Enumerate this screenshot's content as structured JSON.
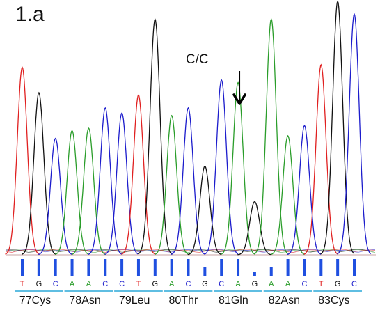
{
  "panel_label": "1.a",
  "annotation": {
    "text": "C/C",
    "target_base_index": 13
  },
  "colors": {
    "A": "#2a9d2a",
    "C": "#1c1ccc",
    "G": "#111111",
    "T": "#e02020",
    "bar": "#1f4fe0",
    "underline": "#2aa8d8"
  },
  "chart_data": {
    "type": "line",
    "title": "",
    "xlabel": "",
    "ylabel": "",
    "ylim": [
      0,
      100
    ],
    "grid": false,
    "legend": "none",
    "bases": [
      "T",
      "G",
      "C",
      "A",
      "A",
      "C",
      "C",
      "T",
      "G",
      "A",
      "C",
      "G",
      "C",
      "A",
      "G",
      "A",
      "A",
      "C",
      "T",
      "G",
      "C"
    ],
    "peak_heights": [
      74,
      64,
      46,
      49,
      50,
      58,
      56,
      63,
      93,
      55,
      58,
      35,
      69,
      68,
      21,
      93,
      47,
      51,
      75,
      100,
      95
    ],
    "quality_bars": [
      3,
      3,
      3,
      3,
      3,
      3,
      3,
      3,
      3,
      3,
      3,
      2,
      3,
      3,
      1,
      2,
      3,
      3,
      3,
      3,
      3
    ],
    "codons": [
      {
        "label": "77Cys",
        "start": 0
      },
      {
        "label": "78Asn",
        "start": 3
      },
      {
        "label": "79Leu",
        "start": 6
      },
      {
        "label": "80Thr",
        "start": 9
      },
      {
        "label": "81Gln",
        "start": 12
      },
      {
        "label": "82Asn",
        "start": 15
      },
      {
        "label": "83Cys",
        "start": 18
      }
    ]
  }
}
